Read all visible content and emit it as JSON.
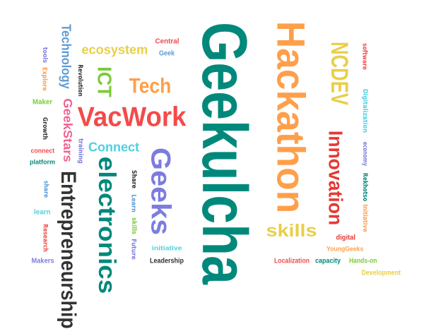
{
  "cloud": {
    "words": [
      {
        "text": "Geekulcha",
        "color": "#00897B"
      },
      {
        "text": "Hackathon",
        "color": "#FF9F4A"
      },
      {
        "text": "VacWork",
        "color": "#F44A4A"
      },
      {
        "text": "NCDEV",
        "color": "#E8CF4A"
      },
      {
        "text": "Innovation",
        "color": "#E53935"
      },
      {
        "text": "electronics",
        "color": "#00897B"
      },
      {
        "text": "Entrepreneurship",
        "color": "#333333"
      },
      {
        "text": "Geeks",
        "color": "#7C7CE0"
      },
      {
        "text": "Tech",
        "color": "#FF9F4A"
      },
      {
        "text": "ICT",
        "color": "#7CCB3A"
      },
      {
        "text": "ecosystem",
        "color": "#E8CF4A"
      },
      {
        "text": "Technology",
        "color": "#5B9BD5"
      },
      {
        "text": "GeekStars",
        "color": "#F06292"
      },
      {
        "text": "Connect",
        "color": "#4DD0E1"
      },
      {
        "text": "skills",
        "color": "#E8CF4A"
      },
      {
        "text": "Central",
        "color": "#F44A4A"
      },
      {
        "text": "Geek",
        "color": "#5B9BD5"
      },
      {
        "text": "Revolution",
        "color": "#333333"
      },
      {
        "text": "tools",
        "color": "#7C7CE0"
      },
      {
        "text": "Explore",
        "color": "#FF9F4A"
      },
      {
        "text": "Maker",
        "color": "#7CCB3A"
      },
      {
        "text": "Growth",
        "color": "#333333"
      },
      {
        "text": "connect",
        "color": "#F44A4A"
      },
      {
        "text": "platform",
        "color": "#00897B"
      },
      {
        "text": "training",
        "color": "#7C7CE0"
      },
      {
        "text": "share",
        "color": "#5B9BD5"
      },
      {
        "text": "learn",
        "color": "#4DD0E1"
      },
      {
        "text": "Research",
        "color": "#F44A4A"
      },
      {
        "text": "Makers",
        "color": "#7C7CE0"
      },
      {
        "text": "Share",
        "color": "#333333"
      },
      {
        "text": "Learn",
        "color": "#5B9BD5"
      },
      {
        "text": "skills",
        "color": "#7CCB3A"
      },
      {
        "text": "Future",
        "color": "#7C7CE0"
      },
      {
        "text": "initiative",
        "color": "#4DD0E1"
      },
      {
        "text": "Leadership",
        "color": "#333333"
      },
      {
        "text": "software",
        "color": "#F44A4A"
      },
      {
        "text": "Digitalization",
        "color": "#4DD0E1"
      },
      {
        "text": "economy",
        "color": "#7C7CE0"
      },
      {
        "text": "Rekhotso",
        "color": "#00897B"
      },
      {
        "text": "Initiative",
        "color": "#FF9F4A"
      },
      {
        "text": "digital",
        "color": "#E53935"
      },
      {
        "text": "YoungGeeks",
        "color": "#FF9F4A"
      },
      {
        "text": "Localization",
        "color": "#F44A4A"
      },
      {
        "text": "capacity",
        "color": "#00897B"
      },
      {
        "text": "Hands-on",
        "color": "#7CCB3A"
      },
      {
        "text": "Development",
        "color": "#E8CF4A"
      }
    ]
  }
}
